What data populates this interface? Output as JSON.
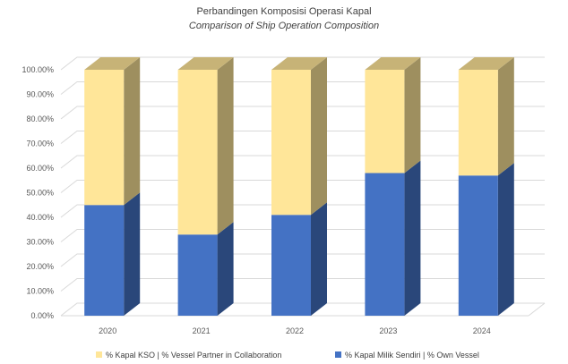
{
  "chart_data": {
    "type": "bar",
    "stacked": true,
    "three_d": true,
    "title": "Perbandingen Komposisi Operasi Kapal",
    "subtitle": "Comparison of Ship Operation Composition",
    "categories": [
      "2020",
      "2021",
      "2022",
      "2023",
      "2024"
    ],
    "y_ticks": [
      "0.00%",
      "10.00%",
      "20.00%",
      "30.00%",
      "40.00%",
      "50.00%",
      "60.00%",
      "70.00%",
      "80.00%",
      "90.00%",
      "100.00%"
    ],
    "ylim": [
      0,
      100
    ],
    "grid": true,
    "legend_position": "bottom",
    "series": [
      {
        "name": "% Kapal Milik Sendiri | % Own Vessel",
        "values": [
          45,
          33,
          41,
          58,
          57
        ],
        "color": "#4472C4"
      },
      {
        "name": "% Kapal KSO | % Vessel Partner in Collaboration",
        "values": [
          55,
          67,
          59,
          42,
          43
        ],
        "color": "#FFE699"
      }
    ]
  }
}
